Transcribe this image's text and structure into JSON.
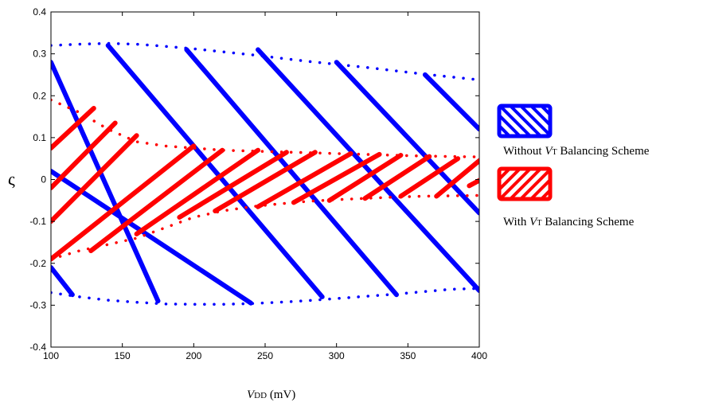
{
  "chart_data": {
    "type": "scatter",
    "title": "",
    "xlabel": {
      "italic_part": "V",
      "sub_part": "DD",
      "rest": " (mV)"
    },
    "ylabel": "ς",
    "xlim": [
      100,
      400
    ],
    "ylim": [
      -0.4,
      0.4
    ],
    "xticks": [
      100,
      150,
      200,
      250,
      300,
      350,
      400
    ],
    "yticks": [
      -0.4,
      -0.3,
      -0.2,
      -0.1,
      0,
      0.1,
      0.2,
      0.3,
      0.4
    ],
    "xtick_labels": [
      "100",
      "150",
      "200",
      "250",
      "300",
      "350",
      "400"
    ],
    "ytick_labels": [
      "-0.4",
      "-0.3",
      "-0.2",
      "-0.1",
      "0",
      "0.1",
      "0.2",
      "0.3",
      "0.4"
    ],
    "grid": false,
    "legend_position": "right",
    "series": [
      {
        "name": "Without VT Balancing Scheme",
        "color": "#0000ff",
        "region": "hatched",
        "boundary_upper": {
          "x": [
            100,
            120,
            140,
            160,
            180,
            200,
            220,
            240,
            260,
            280,
            300,
            320,
            340,
            360,
            380,
            400
          ],
          "y": [
            0.32,
            0.323,
            0.325,
            0.323,
            0.318,
            0.312,
            0.305,
            0.298,
            0.29,
            0.282,
            0.275,
            0.268,
            0.26,
            0.252,
            0.245,
            0.238
          ]
        },
        "boundary_lower": {
          "x": [
            100,
            120,
            140,
            160,
            180,
            200,
            220,
            240,
            260,
            280,
            300,
            320,
            340,
            360,
            380,
            400
          ],
          "y": [
            -0.27,
            -0.28,
            -0.288,
            -0.293,
            -0.297,
            -0.298,
            -0.298,
            -0.296,
            -0.293,
            -0.289,
            -0.284,
            -0.279,
            -0.274,
            -0.268,
            -0.262,
            -0.26
          ]
        },
        "hatch_lines": [
          {
            "x": [
              100,
              175
            ],
            "y": [
              0.28,
              -0.29
            ]
          },
          {
            "x": [
              100,
              240
            ],
            "y": [
              0.02,
              -0.295
            ]
          },
          {
            "x": [
              100,
              115
            ],
            "y": [
              -0.21,
              -0.275
            ]
          },
          {
            "x": [
              140,
              290
            ],
            "y": [
              0.32,
              -0.28
            ]
          },
          {
            "x": [
              195,
              342
            ],
            "y": [
              0.31,
              -0.275
            ]
          },
          {
            "x": [
              245,
              400
            ],
            "y": [
              0.31,
              -0.265
            ]
          },
          {
            "x": [
              300,
              400
            ],
            "y": [
              0.28,
              -0.08
            ]
          },
          {
            "x": [
              362,
              400
            ],
            "y": [
              0.25,
              0.12
            ]
          }
        ]
      },
      {
        "name": "With VT Balancing Scheme",
        "color": "#ff0000",
        "region": "hatched",
        "boundary_upper": {
          "x": [
            100,
            120,
            140,
            160,
            180,
            200,
            220,
            240,
            260,
            280,
            300,
            320,
            340,
            360,
            380,
            400
          ],
          "y": [
            0.19,
            0.16,
            0.12,
            0.09,
            0.08,
            0.075,
            0.07,
            0.068,
            0.066,
            0.064,
            0.062,
            0.06,
            0.058,
            0.056,
            0.055,
            0.054
          ]
        },
        "boundary_lower": {
          "x": [
            100,
            120,
            140,
            160,
            180,
            200,
            220,
            240,
            260,
            280,
            300,
            320,
            340,
            360,
            380,
            400
          ],
          "y": [
            -0.19,
            -0.17,
            -0.155,
            -0.14,
            -0.115,
            -0.09,
            -0.075,
            -0.065,
            -0.058,
            -0.052,
            -0.048,
            -0.045,
            -0.042,
            -0.04,
            -0.039,
            -0.038
          ]
        },
        "hatch_lines": [
          {
            "x": [
              100,
              130
            ],
            "y": [
              0.075,
              0.17
            ]
          },
          {
            "x": [
              100,
              145
            ],
            "y": [
              -0.02,
              0.135
            ]
          },
          {
            "x": [
              100,
              160
            ],
            "y": [
              -0.1,
              0.105
            ]
          },
          {
            "x": [
              100,
              200
            ],
            "y": [
              -0.19,
              0.08
            ]
          },
          {
            "x": [
              128,
              220
            ],
            "y": [
              -0.17,
              0.07
            ]
          },
          {
            "x": [
              160,
              245
            ],
            "y": [
              -0.13,
              0.07
            ]
          },
          {
            "x": [
              190,
              265
            ],
            "y": [
              -0.09,
              0.065
            ]
          },
          {
            "x": [
              215,
              285
            ],
            "y": [
              -0.075,
              0.065
            ]
          },
          {
            "x": [
              245,
              310
            ],
            "y": [
              -0.065,
              0.062
            ]
          },
          {
            "x": [
              270,
              330
            ],
            "y": [
              -0.055,
              0.06
            ]
          },
          {
            "x": [
              295,
              345
            ],
            "y": [
              -0.05,
              0.058
            ]
          },
          {
            "x": [
              320,
              365
            ],
            "y": [
              -0.045,
              0.055
            ]
          },
          {
            "x": [
              345,
              385
            ],
            "y": [
              -0.04,
              0.05
            ]
          },
          {
            "x": [
              370,
              400
            ],
            "y": [
              -0.04,
              0.045
            ]
          },
          {
            "x": [
              393,
              400
            ],
            "y": [
              -0.015,
              -0.002
            ]
          }
        ]
      }
    ],
    "legend": [
      {
        "prefix": "Without ",
        "italic": "V",
        "sub": "T",
        "suffix": " Balancing Scheme",
        "color": "#0000ff"
      },
      {
        "prefix": "With ",
        "italic": "V",
        "sub": "T",
        "suffix": " Balancing Scheme",
        "color": "#ff0000"
      }
    ]
  }
}
